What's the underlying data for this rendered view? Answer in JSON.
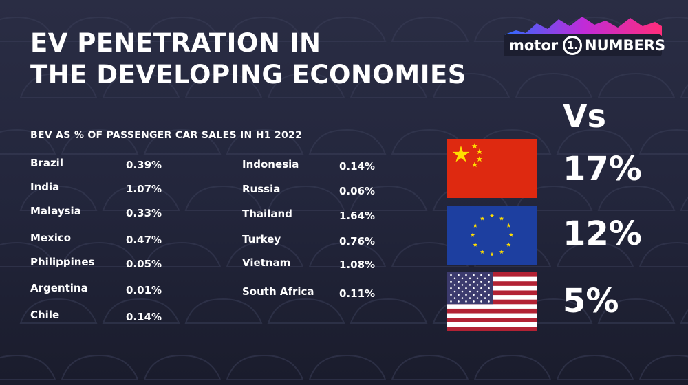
{
  "header": {
    "title_line1": "EV PENETRATION IN",
    "title_line2": "THE DEVELOPING ECONOMIES",
    "logo": {
      "part1": "motor",
      "part2": "1.",
      "part3": "NUMBERS"
    }
  },
  "chart_data": {
    "type": "table",
    "title": "BEV AS % OF PASSENGER CAR SALES IN H1 2022",
    "columns": [
      {
        "rows": [
          {
            "country": "Brazil",
            "value": "0.39%"
          },
          {
            "country": "India",
            "value": "1.07%"
          },
          {
            "country": "Malaysia",
            "value": "0.33%"
          },
          {
            "country": "Mexico",
            "value": "0.47%"
          },
          {
            "country": "Philippines",
            "value": "0.05%"
          },
          {
            "country": "Argentina",
            "value": "0.01%"
          },
          {
            "country": "Chile",
            "value": "0.14%"
          }
        ]
      },
      {
        "rows": [
          {
            "country": "Indonesia",
            "value": "0.14%"
          },
          {
            "country": "Russia",
            "value": "0.06%"
          },
          {
            "country": "Thailand",
            "value": "1.64%"
          },
          {
            "country": "Turkey",
            "value": "0.76%"
          },
          {
            "country": "Vietnam",
            "value": "1.08%"
          },
          {
            "country": "South Africa",
            "value": "0.11%"
          }
        ]
      }
    ],
    "comparison": {
      "label": "Vs",
      "items": [
        {
          "flag": "china-flag",
          "value": "17%"
        },
        {
          "flag": "eu-flag",
          "value": "12%"
        },
        {
          "flag": "usa-flag",
          "value": "5%"
        }
      ]
    }
  },
  "colors": {
    "background": "#1f2237",
    "china_red": "#de2910",
    "china_star": "#ffde00",
    "eu_blue": "#1d3fa0",
    "eu_star": "#ffdd00",
    "us_red": "#b22234",
    "us_blue": "#3c3b6e",
    "logo_gradient": [
      "#2f6bff",
      "#c02bd8",
      "#ff2d7a"
    ]
  }
}
